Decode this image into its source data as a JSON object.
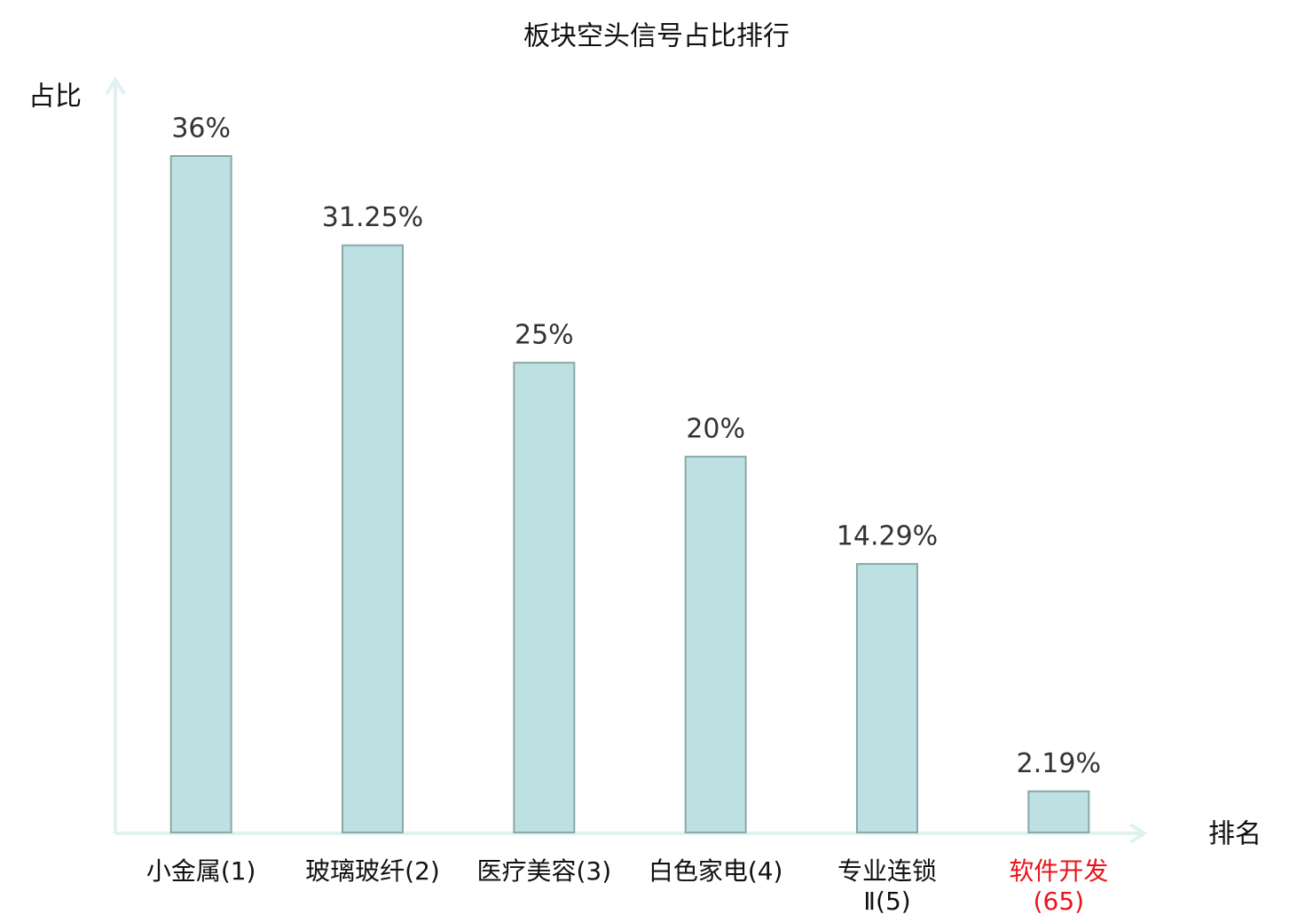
{
  "chart_data": {
    "type": "bar",
    "title": "板块空头信号占比排行",
    "y_label": "占比",
    "x_label": "排名",
    "categories": [
      "小金属(1)",
      "玻璃玻纤(2)",
      "医疗美容(3)",
      "白色家电(4)",
      "专业连锁Ⅱ(5)",
      "软件开发(65)"
    ],
    "values": [
      36,
      31.25,
      25,
      20,
      14.29,
      2.19
    ],
    "value_labels": [
      "36%",
      "31.25%",
      "25%",
      "20%",
      "14.29%",
      "2.19%"
    ],
    "color": "#bde0e2",
    "label_colors": [
      "#111111",
      "#111111",
      "#111111",
      "#111111",
      "#111111",
      "#e8141b"
    ],
    "ylim": [
      0,
      36
    ]
  }
}
